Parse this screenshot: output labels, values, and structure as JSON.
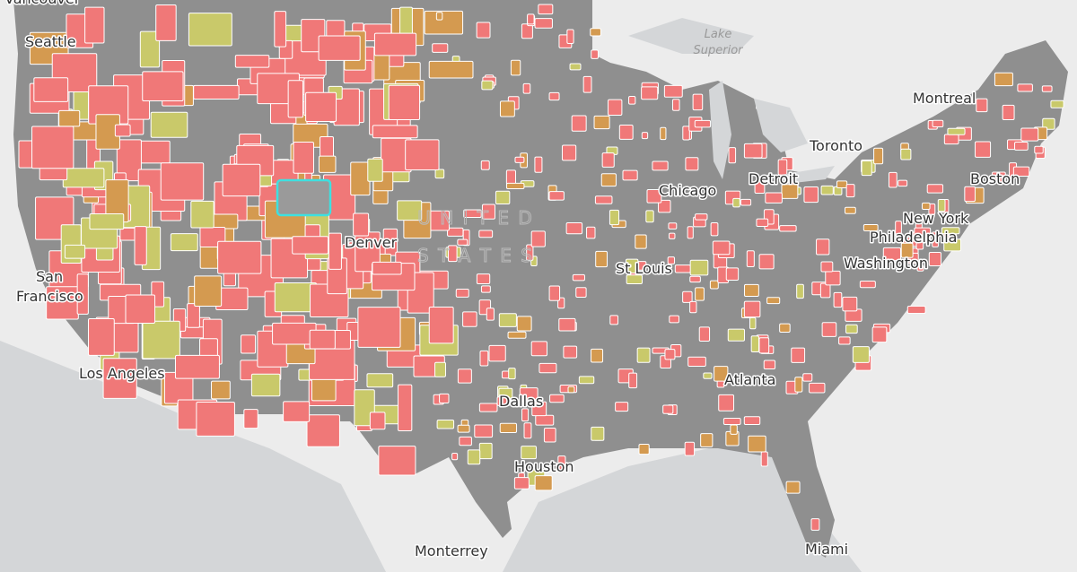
{
  "places": [
    "Vancouver",
    "Seattle",
    "San",
    "Francisco",
    "Los Angeles",
    "Denver",
    "Dallas",
    "Houston",
    "Monterrey",
    "St Louis",
    "Chicago",
    "Detroit",
    "Toronto",
    "Montreal",
    "Boston",
    "New York",
    "Philadelphia",
    "Washington",
    "Atlanta",
    "Miami"
  ],
  "water": [
    "Lake",
    "Superior"
  ],
  "country": [
    "U N I T E D",
    "S T A T E S"
  ]
}
